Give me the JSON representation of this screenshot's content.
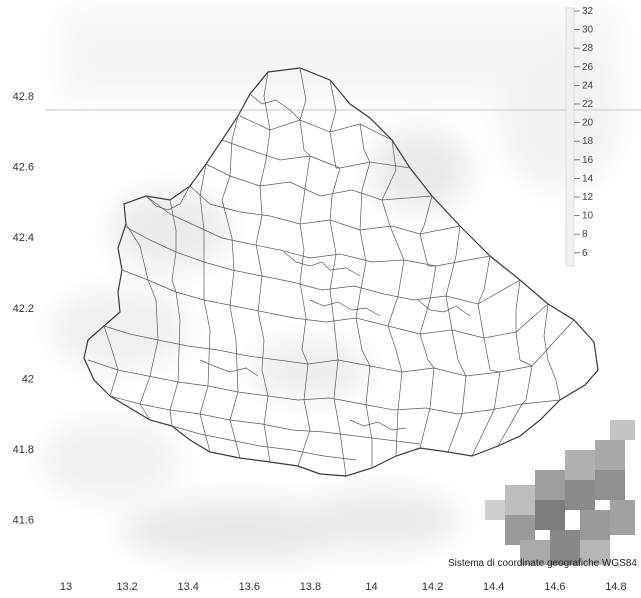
{
  "map": {
    "x_ticks": [
      "13",
      "13.2",
      "13.4",
      "13.6",
      "13.8",
      "14",
      "14.2",
      "14.4",
      "14.6",
      "14.8"
    ],
    "y_ticks": [
      "42.8",
      "42.6",
      "42.4",
      "42.2",
      "42",
      "41.8",
      "41.6"
    ],
    "legend_ticks": [
      "32",
      "30",
      "28",
      "26",
      "24",
      "22",
      "20",
      "18",
      "16",
      "14",
      "12",
      "10",
      "8",
      "6"
    ],
    "credit": "Sistema di coordinate geografiche WGS84"
  }
}
